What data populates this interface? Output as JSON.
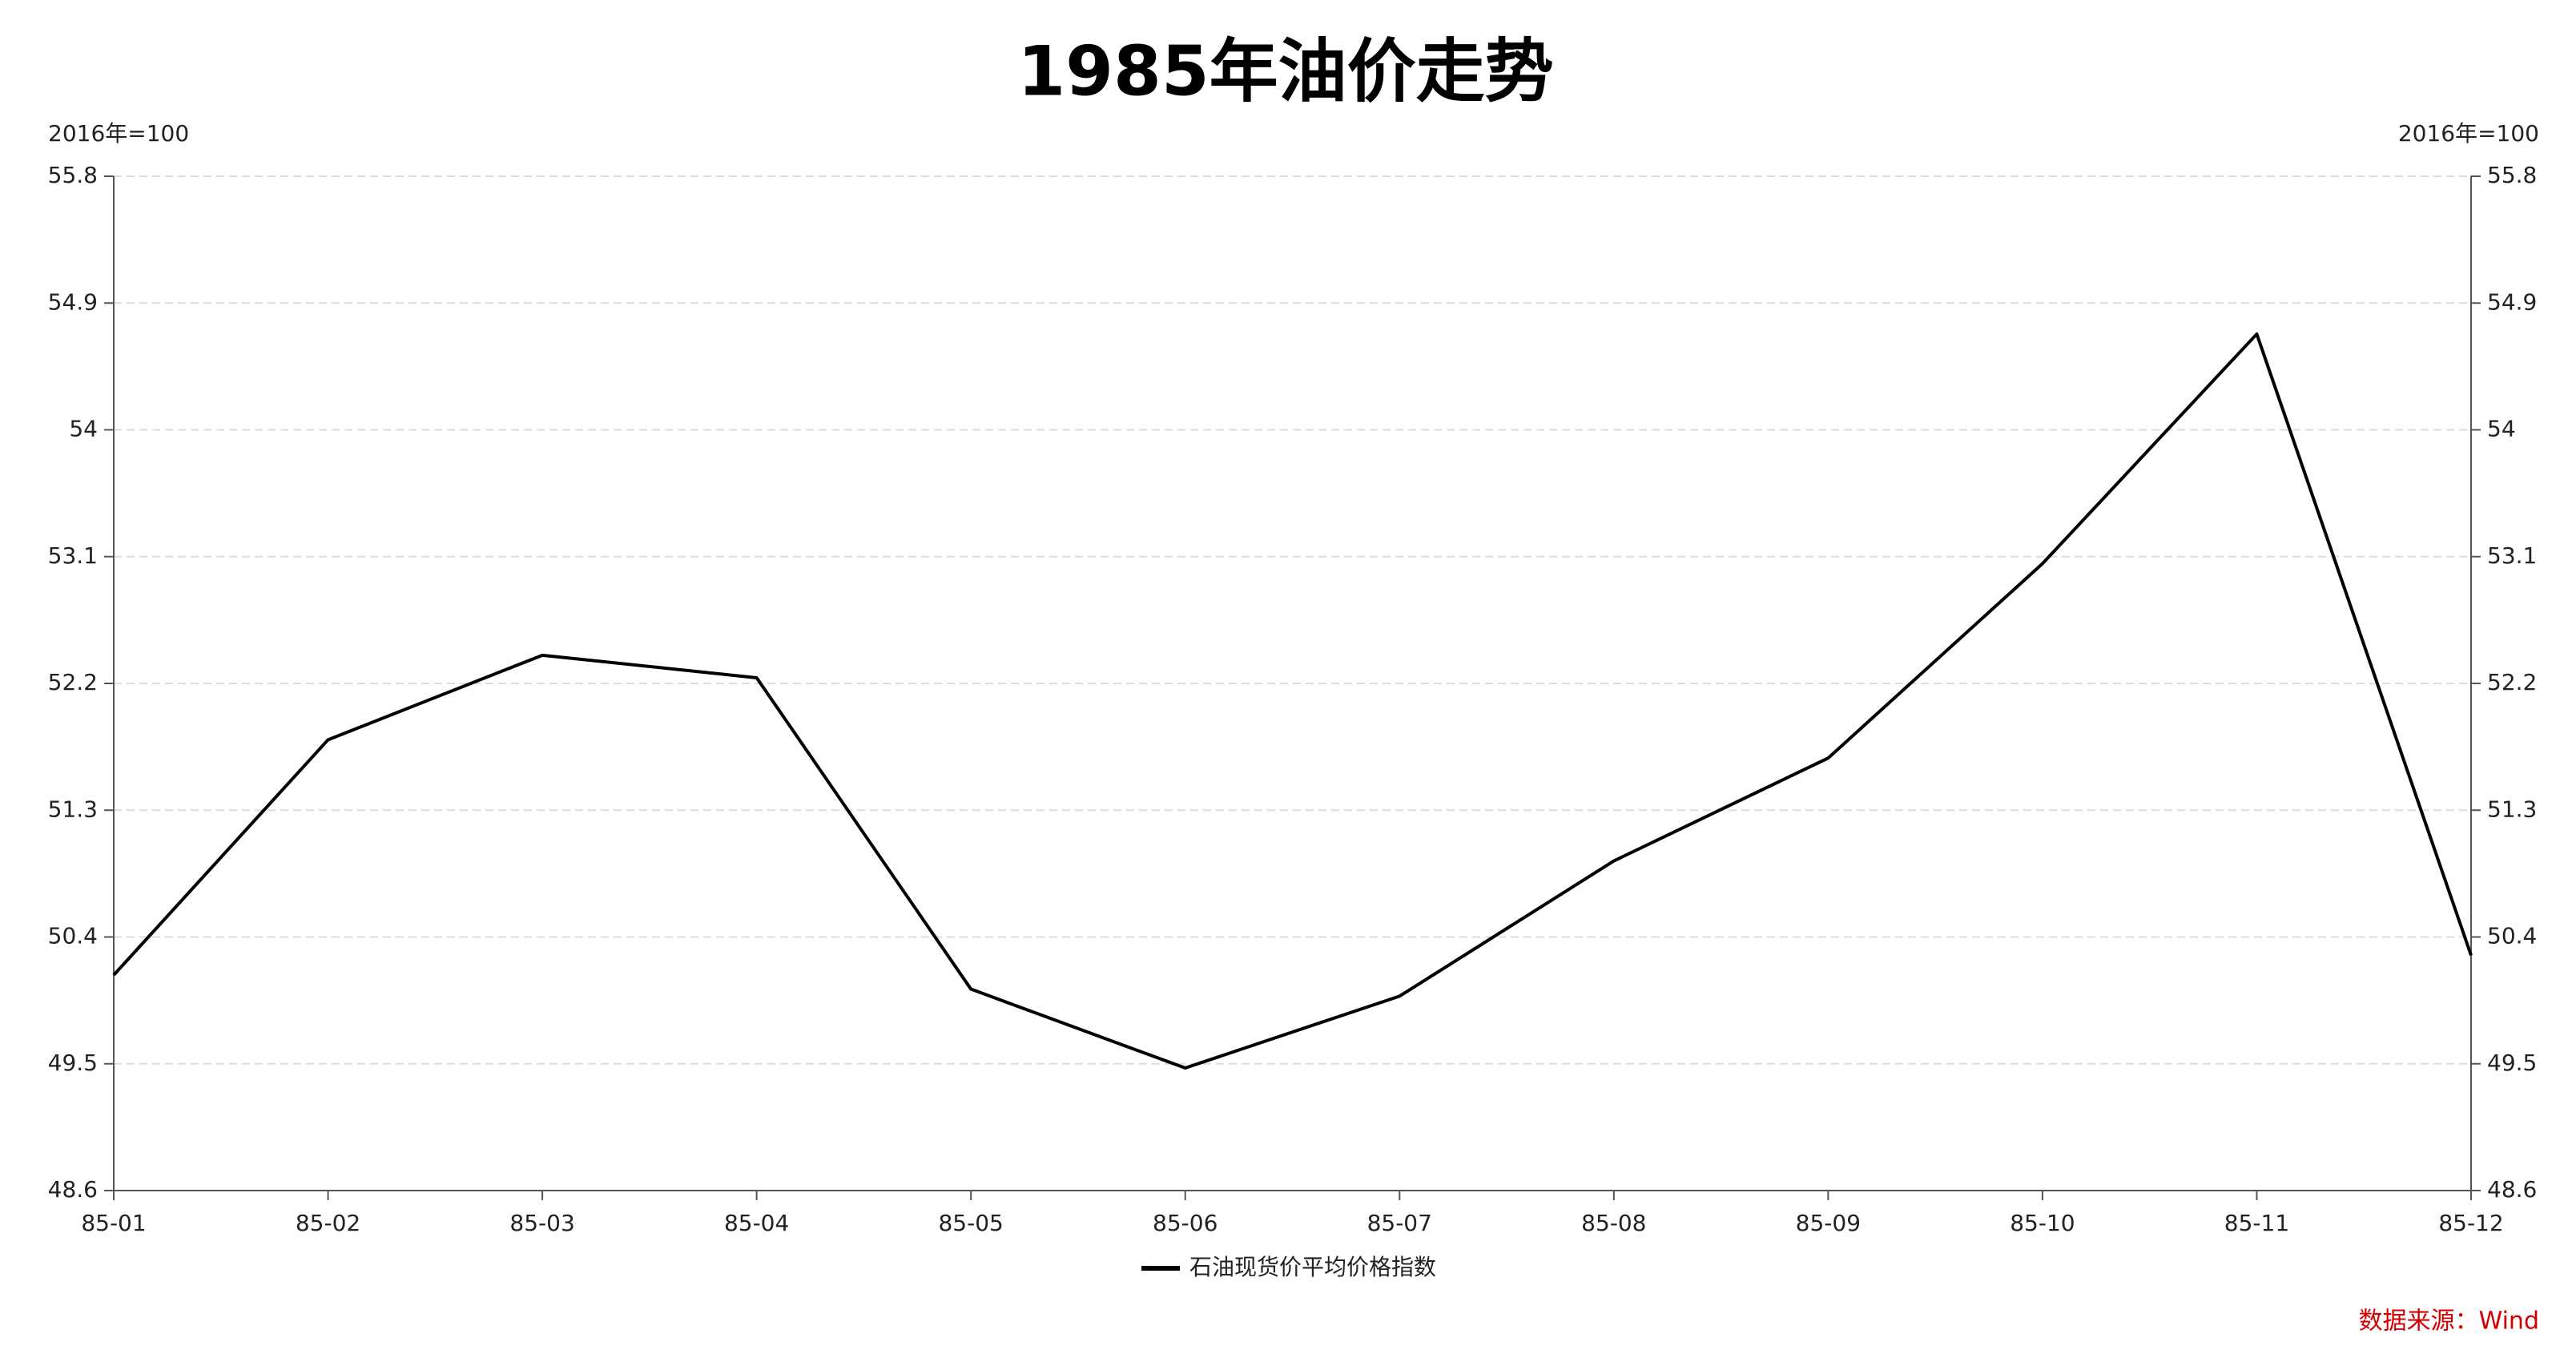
{
  "chart_data": {
    "type": "line",
    "title": "1985年油价走势",
    "y_label": "2016年=100",
    "y2_label": "2016年=100",
    "source": "数据来源：Wind",
    "categories": [
      "85-01",
      "85-02",
      "85-03",
      "85-04",
      "85-05",
      "85-06",
      "85-07",
      "85-08",
      "85-09",
      "85-10",
      "85-11",
      "85-12"
    ],
    "series": [
      {
        "name": "石油现货价平均价格指数",
        "color": "#000000",
        "values": [
          50.13,
          51.8,
          52.4,
          52.24,
          50.03,
          49.47,
          49.98,
          50.94,
          51.67,
          53.05,
          54.68,
          50.27
        ]
      }
    ],
    "ylim": [
      48.6,
      55.8
    ],
    "yticks": [
      48.6,
      49.5,
      50.4,
      51.3,
      52.2,
      53.1,
      54,
      54.9,
      55.8
    ],
    "y2lim": [
      48.6,
      55.8
    ],
    "y2ticks": [
      48.6,
      49.5,
      50.4,
      51.3,
      52.2,
      53.1,
      54,
      54.9,
      55.8
    ],
    "grid": true,
    "legend": "bottom"
  }
}
